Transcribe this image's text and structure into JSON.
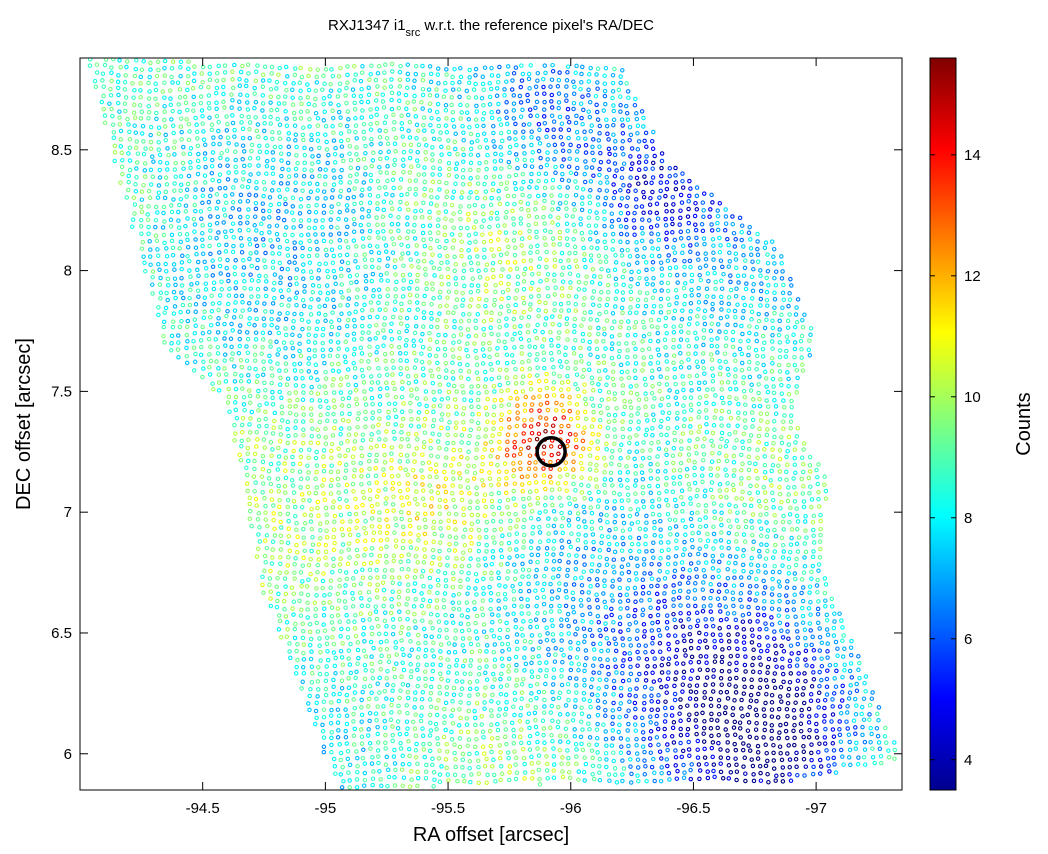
{
  "chart_data": {
    "type": "scatter",
    "title": {
      "prefix": "RXJ1347 i1",
      "subscript": "src",
      "suffix": " w.r.t. the reference pixel's RA/DEC"
    },
    "xlabel": "RA offset [arcsec]",
    "ylabel": "DEC offset [arcsec]",
    "xlim": [
      -94.0,
      -97.35
    ],
    "ylim": [
      5.85,
      8.88
    ],
    "x_reversed": true,
    "xticks": [
      -94.5,
      -95,
      -95.5,
      -96,
      -96.5,
      -97
    ],
    "xtick_labels": [
      "-94.5",
      "-95",
      "-95.5",
      "-96",
      "-96.5",
      "-97"
    ],
    "yticks": [
      6,
      6.5,
      7,
      7.5,
      8,
      8.5
    ],
    "ytick_labels": [
      "6",
      "6.5",
      "7",
      "7.5",
      "8",
      "8.5"
    ],
    "grid": false,
    "marker": "open-circle",
    "colormap": "jet",
    "colorbar": {
      "label": "Counts",
      "range": [
        3.5,
        15.6
      ],
      "ticks": [
        4,
        6,
        8,
        10,
        12,
        14
      ],
      "tick_labels": [
        "4",
        "6",
        "8",
        "10",
        "12",
        "14"
      ]
    },
    "coverage_polygon": [
      [
        -94.02,
        8.88
      ],
      [
        -95.0,
        8.86
      ],
      [
        -96.2,
        8.85
      ],
      [
        -96.4,
        8.45
      ],
      [
        -96.85,
        8.1
      ],
      [
        -97.0,
        7.72
      ],
      [
        -96.9,
        7.42
      ],
      [
        -97.05,
        7.12
      ],
      [
        -97.02,
        6.78
      ],
      [
        -97.35,
        5.98
      ],
      [
        -96.9,
        5.88
      ],
      [
        -95.6,
        5.87
      ],
      [
        -95.05,
        5.85
      ],
      [
        -94.75,
        6.65
      ],
      [
        -94.6,
        7.45
      ],
      [
        -94.35,
        7.68
      ],
      [
        -94.02,
        8.88
      ]
    ],
    "features": [
      {
        "type": "peak",
        "ra": -95.9,
        "dec": 7.3,
        "sigma": 0.14,
        "counts": 15.0
      },
      {
        "type": "shoulder",
        "ra": -95.5,
        "dec": 7.05,
        "sigma": 0.25,
        "counts": 11.5
      },
      {
        "type": "low",
        "ra": -96.55,
        "dec": 6.4,
        "sigma": 0.35,
        "counts": 4.5
      },
      {
        "type": "low",
        "ra": -96.8,
        "dec": 6.1,
        "sigma": 0.2,
        "counts": 4.5
      },
      {
        "type": "low",
        "ra": -96.35,
        "dec": 8.35,
        "sigma": 0.2,
        "counts": 5.0
      },
      {
        "type": "low",
        "ra": -95.9,
        "dec": 8.6,
        "sigma": 0.2,
        "counts": 6.0
      }
    ],
    "marker_circle": {
      "ra": -95.92,
      "dec": 7.25,
      "label": "reference position",
      "color": "#000000"
    },
    "colors": {
      "axis": "#000000",
      "background": "#ffffff",
      "circle": "#000000"
    }
  }
}
